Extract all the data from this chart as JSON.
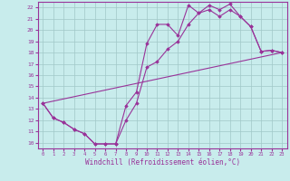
{
  "xlabel": "Windchill (Refroidissement éolien,°C)",
  "xlim": [
    -0.5,
    23.5
  ],
  "ylim": [
    9.5,
    22.5
  ],
  "xticks": [
    0,
    1,
    2,
    3,
    4,
    5,
    6,
    7,
    8,
    9,
    10,
    11,
    12,
    13,
    14,
    15,
    16,
    17,
    18,
    19,
    20,
    21,
    22,
    23
  ],
  "yticks": [
    10,
    11,
    12,
    13,
    14,
    15,
    16,
    17,
    18,
    19,
    20,
    21,
    22
  ],
  "background_color": "#c8ecec",
  "grid_color": "#a0c8c8",
  "line_color": "#993399",
  "line1_x": [
    0,
    1,
    2,
    3,
    4,
    5,
    6,
    7,
    8,
    9,
    10,
    11,
    12,
    13,
    14,
    15,
    16,
    17,
    18,
    19,
    20,
    21,
    22,
    23
  ],
  "line1_y": [
    13.5,
    12.2,
    11.8,
    11.2,
    10.8,
    9.9,
    9.9,
    9.9,
    13.3,
    14.5,
    18.8,
    20.5,
    20.5,
    19.5,
    22.2,
    21.5,
    22.2,
    21.8,
    22.3,
    21.2,
    20.3,
    18.1,
    18.2,
    18.0
  ],
  "line2_x": [
    0,
    1,
    2,
    3,
    4,
    5,
    6,
    7,
    8,
    9,
    10,
    11,
    12,
    13,
    14,
    15,
    16,
    17,
    18,
    19,
    20,
    21,
    22,
    23
  ],
  "line2_y": [
    13.5,
    12.2,
    11.8,
    11.2,
    10.8,
    9.9,
    9.9,
    9.9,
    12.0,
    13.5,
    16.7,
    17.2,
    18.3,
    19.0,
    20.5,
    21.5,
    21.8,
    21.2,
    21.8,
    21.2,
    20.3,
    18.1,
    18.2,
    18.0
  ],
  "line3_x": [
    0,
    23
  ],
  "line3_y": [
    13.5,
    18.0
  ]
}
